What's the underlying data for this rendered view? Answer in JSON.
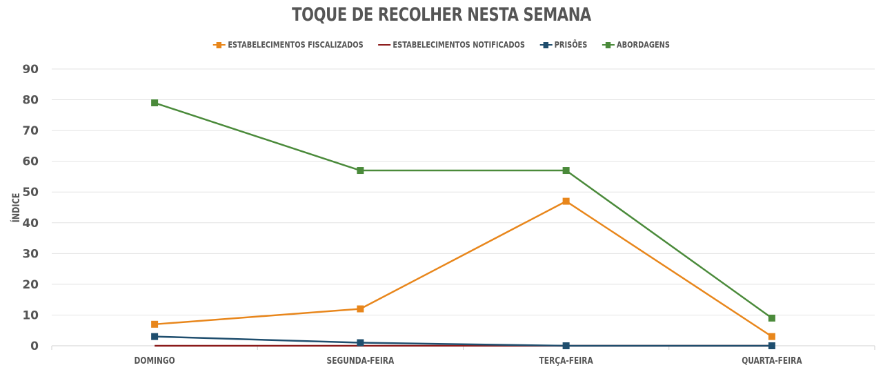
{
  "chart_data": {
    "type": "line",
    "title": "TOQUE DE RECOLHER NESTA SEMANA",
    "xlabel": "",
    "ylabel": "ÍNDICE",
    "categories": [
      "DOMINGO",
      "SEGUNDA-FEIRA",
      "TERÇA-FEIRA",
      "QUARTA-FEIRA"
    ],
    "ylim": [
      0,
      90
    ],
    "yticks": [
      0,
      10,
      20,
      30,
      40,
      50,
      60,
      70,
      80,
      90
    ],
    "grid": true,
    "legend_position": "top-center",
    "series": [
      {
        "name": "ESTABELECIMENTOS FISCALIZADOS",
        "color": "#E8861B",
        "marker": true,
        "values": [
          7,
          12,
          47,
          3
        ]
      },
      {
        "name": "ESTABELECIMENTOS NOTIFICADOS",
        "color": "#8B1A1A",
        "marker": false,
        "values": [
          0,
          0,
          0,
          0
        ]
      },
      {
        "name": "PRISÕES",
        "color": "#1F4E6E",
        "marker": true,
        "values": [
          3,
          1,
          0,
          0
        ]
      },
      {
        "name": "ABORDAGENS",
        "color": "#4A8A3A",
        "marker": true,
        "values": [
          79,
          57,
          57,
          9
        ]
      }
    ]
  }
}
